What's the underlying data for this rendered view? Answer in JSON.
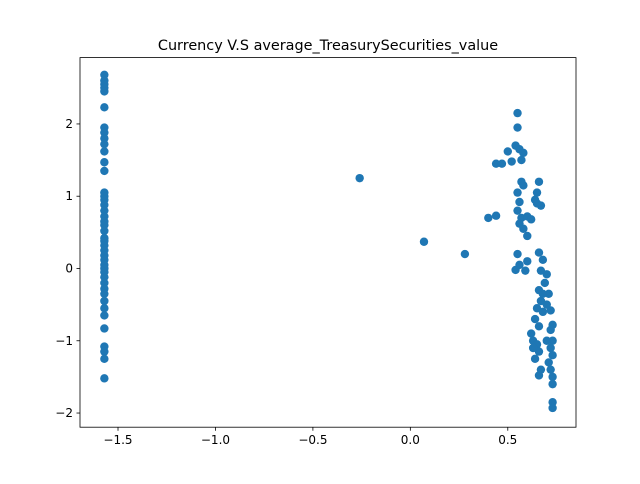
{
  "chart_data": {
    "type": "scatter",
    "title": "Currency V.S average_TreasurySecurities_value",
    "color": "#1f77b4",
    "x": [
      -1.57,
      -1.57,
      -1.57,
      -1.57,
      -1.57,
      -1.57,
      -1.57,
      -1.57,
      -1.57,
      -1.57,
      -1.57,
      -1.57,
      -1.57,
      -1.57,
      -1.57,
      -1.57,
      -1.57,
      -1.57,
      -1.57,
      -1.57,
      -1.57,
      -1.57,
      -1.57,
      -1.57,
      -1.57,
      -1.57,
      -1.57,
      -1.57,
      -1.57,
      -1.57,
      -1.57,
      -1.57,
      -1.57,
      -1.57,
      -1.57,
      -1.57,
      -1.57,
      -1.57,
      -1.57,
      -1.57,
      -1.57,
      -1.57,
      -1.57,
      -0.26,
      0.07,
      0.28,
      0.4,
      0.44,
      0.44,
      0.47,
      0.5,
      0.52,
      0.54,
      0.55,
      0.55,
      0.56,
      0.57,
      0.58,
      0.57,
      0.58,
      0.55,
      0.56,
      0.55,
      0.57,
      0.56,
      0.58,
      0.6,
      0.55,
      0.56,
      0.54,
      0.59,
      0.6,
      0.6,
      0.62,
      0.64,
      0.65,
      0.66,
      0.65,
      0.67,
      0.66,
      0.68,
      0.67,
      0.7,
      0.69,
      0.66,
      0.67,
      0.65,
      0.68,
      0.64,
      0.66,
      0.62,
      0.63,
      0.65,
      0.66,
      0.64,
      0.67,
      0.66,
      0.71,
      0.72,
      0.73,
      0.72,
      0.73,
      0.72,
      0.73,
      0.71,
      0.72,
      0.73,
      0.73,
      0.73,
      0.73,
      0.68,
      0.7,
      0.63,
      0.7
    ],
    "values": [
      2.68,
      2.6,
      2.55,
      2.5,
      2.45,
      2.23,
      1.95,
      1.88,
      1.8,
      1.72,
      1.62,
      1.47,
      1.35,
      1.05,
      1.0,
      0.95,
      0.88,
      0.8,
      0.72,
      0.65,
      0.6,
      0.52,
      0.42,
      0.38,
      0.32,
      0.25,
      0.18,
      0.12,
      0.05,
      0.0,
      -0.05,
      -0.12,
      -0.2,
      -0.28,
      -0.35,
      -0.45,
      -0.55,
      -0.65,
      -0.83,
      -1.08,
      -1.15,
      -1.25,
      -1.52,
      1.25,
      0.37,
      0.2,
      0.7,
      0.73,
      1.45,
      1.45,
      1.62,
      1.48,
      1.7,
      2.15,
      1.95,
      1.65,
      1.5,
      1.6,
      1.2,
      1.15,
      1.05,
      0.92,
      0.8,
      0.7,
      0.62,
      0.55,
      0.45,
      0.2,
      0.05,
      -0.02,
      -0.03,
      0.1,
      0.72,
      0.68,
      0.95,
      1.05,
      1.2,
      0.9,
      0.87,
      0.22,
      0.12,
      -0.03,
      -0.08,
      -0.2,
      -0.3,
      -0.45,
      -0.55,
      -0.6,
      -0.7,
      -0.8,
      -0.9,
      -1.0,
      -1.05,
      -1.15,
      -1.25,
      -1.4,
      -1.48,
      -0.35,
      -0.58,
      -0.78,
      -0.85,
      -1.0,
      -1.1,
      -1.2,
      -1.3,
      -1.4,
      -1.5,
      -1.6,
      -1.85,
      -1.93,
      -0.35,
      -0.5,
      -1.1,
      -1.0
    ],
    "xlim": [
      -1.695,
      0.85
    ],
    "ylim": [
      -2.196,
      2.918
    ],
    "xticks": [
      {
        "value": -1.5,
        "label": "−1.5"
      },
      {
        "value": -1.0,
        "label": "−1.0"
      },
      {
        "value": -0.5,
        "label": "−0.5"
      },
      {
        "value": 0.0,
        "label": "0.0"
      },
      0.5
    ],
    "yticks": [
      {
        "value": -2,
        "label": "−2"
      },
      {
        "value": -1,
        "label": "−1"
      },
      0,
      1,
      2
    ]
  }
}
